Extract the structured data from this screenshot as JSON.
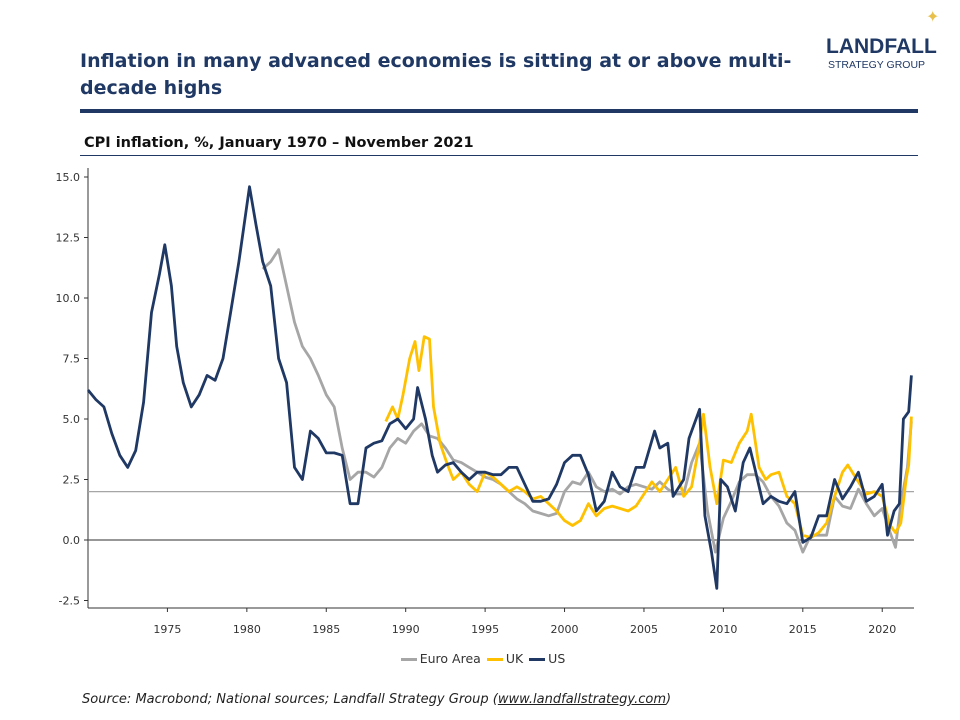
{
  "header": {
    "title": "Inflation in many advanced economies is sitting at or above multi-decade highs",
    "logo_line1": "LANDFALL",
    "logo_line2": "STRATEGY GROUP",
    "subtitle": "CPI inflation, %, January 1970 – November 2021"
  },
  "source": {
    "prefix": "Source: Macrobond; National sources; Landfall Strategy Group (",
    "link": "www.landfallstrategy.com",
    "suffix": ")"
  },
  "chart_data": {
    "type": "line",
    "title": "",
    "xlabel": "",
    "ylabel": "",
    "xlim": [
      "1970-01",
      "2022-01"
    ],
    "ylim": [
      -3,
      15.5
    ],
    "yticks": [
      "15.0",
      "12.5",
      "10.0",
      "7.5",
      "5.0",
      "2.5",
      "0.0",
      "-2.5"
    ],
    "xticks": [
      "1975",
      "1980",
      "1985",
      "1990",
      "1995",
      "2000",
      "2005",
      "2010",
      "2015",
      "2020"
    ],
    "reference_lines": [
      {
        "y": 2.0,
        "color": "#a6a6a6"
      },
      {
        "y": 0,
        "color": "#595959"
      }
    ],
    "legend_placement": "bottom",
    "series": [
      {
        "name": "Euro Area",
        "color": "#a6a6a6",
        "points": [
          [
            "1981-01",
            11.2
          ],
          [
            "1981-07",
            11.5
          ],
          [
            "1982-01",
            12.0
          ],
          [
            "1982-07",
            10.5
          ],
          [
            "1983-01",
            9.0
          ],
          [
            "1983-07",
            8.0
          ],
          [
            "1984-01",
            7.5
          ],
          [
            "1984-07",
            6.8
          ],
          [
            "1985-01",
            6.0
          ],
          [
            "1985-07",
            5.5
          ],
          [
            "1986-01",
            3.8
          ],
          [
            "1986-07",
            2.5
          ],
          [
            "1987-01",
            2.8
          ],
          [
            "1987-07",
            2.8
          ],
          [
            "1988-01",
            2.6
          ],
          [
            "1988-07",
            3.0
          ],
          [
            "1989-01",
            3.8
          ],
          [
            "1989-07",
            4.2
          ],
          [
            "1990-01",
            4.0
          ],
          [
            "1990-07",
            4.5
          ],
          [
            "1991-01",
            4.8
          ],
          [
            "1991-07",
            4.3
          ],
          [
            "1992-01",
            4.2
          ],
          [
            "1992-07",
            3.8
          ],
          [
            "1993-01",
            3.3
          ],
          [
            "1993-07",
            3.2
          ],
          [
            "1994-01",
            3.0
          ],
          [
            "1994-07",
            2.8
          ],
          [
            "1995-01",
            2.6
          ],
          [
            "1995-07",
            2.5
          ],
          [
            "1996-01",
            2.3
          ],
          [
            "1996-07",
            2.0
          ],
          [
            "1997-01",
            1.7
          ],
          [
            "1997-07",
            1.5
          ],
          [
            "1998-01",
            1.2
          ],
          [
            "1998-07",
            1.1
          ],
          [
            "1999-01",
            1.0
          ],
          [
            "1999-07",
            1.1
          ],
          [
            "2000-01",
            2.0
          ],
          [
            "2000-07",
            2.4
          ],
          [
            "2001-01",
            2.3
          ],
          [
            "2001-07",
            2.8
          ],
          [
            "2002-01",
            2.2
          ],
          [
            "2002-07",
            2.0
          ],
          [
            "2003-01",
            2.1
          ],
          [
            "2003-07",
            1.9
          ],
          [
            "2004-01",
            2.2
          ],
          [
            "2004-07",
            2.3
          ],
          [
            "2005-01",
            2.2
          ],
          [
            "2005-07",
            2.1
          ],
          [
            "2006-01",
            2.4
          ],
          [
            "2006-07",
            2.1
          ],
          [
            "2007-01",
            1.9
          ],
          [
            "2007-07",
            1.9
          ],
          [
            "2008-01",
            3.2
          ],
          [
            "2008-07",
            4.0
          ],
          [
            "2009-01",
            1.2
          ],
          [
            "2009-07",
            -0.5
          ],
          [
            "2010-01",
            0.9
          ],
          [
            "2010-07",
            1.6
          ],
          [
            "2011-01",
            2.4
          ],
          [
            "2011-07",
            2.7
          ],
          [
            "2012-01",
            2.7
          ],
          [
            "2012-07",
            2.4
          ],
          [
            "2013-01",
            1.8
          ],
          [
            "2013-07",
            1.4
          ],
          [
            "2014-01",
            0.7
          ],
          [
            "2014-07",
            0.4
          ],
          [
            "2015-01",
            -0.5
          ],
          [
            "2015-07",
            0.2
          ],
          [
            "2016-01",
            0.2
          ],
          [
            "2016-07",
            0.2
          ],
          [
            "2017-01",
            1.8
          ],
          [
            "2017-07",
            1.4
          ],
          [
            "2018-01",
            1.3
          ],
          [
            "2018-07",
            2.1
          ],
          [
            "2019-01",
            1.5
          ],
          [
            "2019-07",
            1.0
          ],
          [
            "2020-01",
            1.3
          ],
          [
            "2020-07",
            0.3
          ],
          [
            "2020-11",
            -0.3
          ],
          [
            "2021-03",
            1.5
          ],
          [
            "2021-08",
            3.0
          ],
          [
            "2021-11",
            4.9
          ]
        ]
      },
      {
        "name": "UK",
        "color": "#ffc000",
        "points": [
          [
            "1988-10",
            4.9
          ],
          [
            "1989-03",
            5.5
          ],
          [
            "1989-07",
            5.0
          ],
          [
            "1989-11",
            6.0
          ],
          [
            "1990-04",
            7.5
          ],
          [
            "1990-08",
            8.2
          ],
          [
            "1990-11",
            7.0
          ],
          [
            "1991-03",
            8.4
          ],
          [
            "1991-07",
            8.3
          ],
          [
            "1991-10",
            5.5
          ],
          [
            "1992-03",
            4.0
          ],
          [
            "1992-08",
            3.2
          ],
          [
            "1993-01",
            2.5
          ],
          [
            "1993-07",
            2.8
          ],
          [
            "1994-01",
            2.3
          ],
          [
            "1994-07",
            2.0
          ],
          [
            "1995-01",
            2.8
          ],
          [
            "1995-07",
            2.6
          ],
          [
            "1996-01",
            2.3
          ],
          [
            "1996-07",
            2.0
          ],
          [
            "1997-01",
            2.2
          ],
          [
            "1997-07",
            2.0
          ],
          [
            "1998-01",
            1.7
          ],
          [
            "1998-07",
            1.8
          ],
          [
            "1999-01",
            1.5
          ],
          [
            "1999-07",
            1.2
          ],
          [
            "2000-01",
            0.8
          ],
          [
            "2000-07",
            0.6
          ],
          [
            "2001-01",
            0.8
          ],
          [
            "2001-07",
            1.5
          ],
          [
            "2002-01",
            1.0
          ],
          [
            "2002-07",
            1.3
          ],
          [
            "2003-01",
            1.4
          ],
          [
            "2003-07",
            1.3
          ],
          [
            "2004-01",
            1.2
          ],
          [
            "2004-07",
            1.4
          ],
          [
            "2005-01",
            1.9
          ],
          [
            "2005-07",
            2.4
          ],
          [
            "2006-01",
            2.0
          ],
          [
            "2006-07",
            2.5
          ],
          [
            "2007-01",
            3.0
          ],
          [
            "2007-07",
            1.8
          ],
          [
            "2008-01",
            2.2
          ],
          [
            "2008-07",
            4.0
          ],
          [
            "2008-10",
            5.2
          ],
          [
            "2009-03",
            3.0
          ],
          [
            "2009-08",
            1.5
          ],
          [
            "2010-01",
            3.3
          ],
          [
            "2010-07",
            3.2
          ],
          [
            "2011-01",
            4.0
          ],
          [
            "2011-07",
            4.5
          ],
          [
            "2011-10",
            5.2
          ],
          [
            "2012-04",
            3.0
          ],
          [
            "2012-09",
            2.5
          ],
          [
            "2013-01",
            2.7
          ],
          [
            "2013-07",
            2.8
          ],
          [
            "2014-01",
            1.8
          ],
          [
            "2014-07",
            1.5
          ],
          [
            "2015-01",
            0.2
          ],
          [
            "2015-07",
            0.1
          ],
          [
            "2016-01",
            0.3
          ],
          [
            "2016-07",
            0.7
          ],
          [
            "2017-01",
            1.8
          ],
          [
            "2017-07",
            2.8
          ],
          [
            "2017-11",
            3.1
          ],
          [
            "2018-07",
            2.4
          ],
          [
            "2019-01",
            1.9
          ],
          [
            "2019-07",
            2.0
          ],
          [
            "2020-01",
            1.8
          ],
          [
            "2020-07",
            0.6
          ],
          [
            "2020-11",
            0.3
          ],
          [
            "2021-03",
            0.7
          ],
          [
            "2021-07",
            2.5
          ],
          [
            "2021-09",
            3.1
          ],
          [
            "2021-11",
            5.1
          ]
        ]
      },
      {
        "name": "US",
        "color": "#1f3864",
        "points": [
          [
            "1970-01",
            6.2
          ],
          [
            "1970-07",
            5.8
          ],
          [
            "1971-01",
            5.5
          ],
          [
            "1971-07",
            4.4
          ],
          [
            "1972-01",
            3.5
          ],
          [
            "1972-07",
            3.0
          ],
          [
            "1973-01",
            3.7
          ],
          [
            "1973-07",
            5.7
          ],
          [
            "1974-01",
            9.4
          ],
          [
            "1974-07",
            11.0
          ],
          [
            "1974-11",
            12.2
          ],
          [
            "1975-04",
            10.5
          ],
          [
            "1975-08",
            8.0
          ],
          [
            "1976-01",
            6.5
          ],
          [
            "1976-07",
            5.5
          ],
          [
            "1977-01",
            6.0
          ],
          [
            "1977-07",
            6.8
          ],
          [
            "1978-01",
            6.6
          ],
          [
            "1978-07",
            7.5
          ],
          [
            "1979-01",
            9.5
          ],
          [
            "1979-07",
            11.5
          ],
          [
            "1980-03",
            14.6
          ],
          [
            "1980-08",
            13.0
          ],
          [
            "1981-01",
            11.5
          ],
          [
            "1981-07",
            10.5
          ],
          [
            "1982-01",
            7.5
          ],
          [
            "1982-07",
            6.5
          ],
          [
            "1983-01",
            3.0
          ],
          [
            "1983-07",
            2.5
          ],
          [
            "1984-01",
            4.5
          ],
          [
            "1984-07",
            4.2
          ],
          [
            "1985-01",
            3.6
          ],
          [
            "1985-07",
            3.6
          ],
          [
            "1986-01",
            3.5
          ],
          [
            "1986-07",
            1.5
          ],
          [
            "1987-01",
            1.5
          ],
          [
            "1987-07",
            3.8
          ],
          [
            "1988-01",
            4.0
          ],
          [
            "1988-07",
            4.1
          ],
          [
            "1989-01",
            4.8
          ],
          [
            "1989-07",
            5.0
          ],
          [
            "1990-01",
            4.6
          ],
          [
            "1990-07",
            5.0
          ],
          [
            "1990-10",
            6.3
          ],
          [
            "1991-04",
            5.0
          ],
          [
            "1991-09",
            3.5
          ],
          [
            "1992-01",
            2.8
          ],
          [
            "1992-07",
            3.1
          ],
          [
            "1993-01",
            3.2
          ],
          [
            "1993-07",
            2.8
          ],
          [
            "1994-01",
            2.5
          ],
          [
            "1994-07",
            2.8
          ],
          [
            "1995-01",
            2.8
          ],
          [
            "1995-07",
            2.7
          ],
          [
            "1996-01",
            2.7
          ],
          [
            "1996-07",
            3.0
          ],
          [
            "1997-01",
            3.0
          ],
          [
            "1997-07",
            2.3
          ],
          [
            "1998-01",
            1.6
          ],
          [
            "1998-07",
            1.6
          ],
          [
            "1999-01",
            1.7
          ],
          [
            "1999-07",
            2.3
          ],
          [
            "2000-01",
            3.2
          ],
          [
            "2000-07",
            3.5
          ],
          [
            "2001-01",
            3.5
          ],
          [
            "2001-07",
            2.7
          ],
          [
            "2002-01",
            1.2
          ],
          [
            "2002-07",
            1.6
          ],
          [
            "2003-01",
            2.8
          ],
          [
            "2003-07",
            2.2
          ],
          [
            "2004-01",
            2.0
          ],
          [
            "2004-07",
            3.0
          ],
          [
            "2005-01",
            3.0
          ],
          [
            "2005-09",
            4.5
          ],
          [
            "2006-01",
            3.8
          ],
          [
            "2006-07",
            4.0
          ],
          [
            "2006-11",
            1.8
          ],
          [
            "2007-07",
            2.5
          ],
          [
            "2007-11",
            4.2
          ],
          [
            "2008-07",
            5.4
          ],
          [
            "2008-11",
            1.0
          ],
          [
            "2009-04",
            -0.5
          ],
          [
            "2009-08",
            -2.0
          ],
          [
            "2009-11",
            2.5
          ],
          [
            "2010-04",
            2.2
          ],
          [
            "2010-10",
            1.2
          ],
          [
            "2011-04",
            3.2
          ],
          [
            "2011-09",
            3.8
          ],
          [
            "2012-01",
            2.9
          ],
          [
            "2012-07",
            1.5
          ],
          [
            "2013-01",
            1.8
          ],
          [
            "2013-07",
            1.6
          ],
          [
            "2014-01",
            1.5
          ],
          [
            "2014-07",
            2.0
          ],
          [
            "2015-01",
            -0.1
          ],
          [
            "2015-07",
            0.1
          ],
          [
            "2016-01",
            1.0
          ],
          [
            "2016-07",
            1.0
          ],
          [
            "2017-01",
            2.5
          ],
          [
            "2017-07",
            1.7
          ],
          [
            "2018-01",
            2.2
          ],
          [
            "2018-07",
            2.8
          ],
          [
            "2019-01",
            1.6
          ],
          [
            "2019-07",
            1.8
          ],
          [
            "2020-01",
            2.3
          ],
          [
            "2020-05",
            0.2
          ],
          [
            "2020-10",
            1.2
          ],
          [
            "2021-02",
            1.5
          ],
          [
            "2021-05",
            5.0
          ],
          [
            "2021-09",
            5.3
          ],
          [
            "2021-11",
            6.8
          ]
        ]
      }
    ]
  }
}
